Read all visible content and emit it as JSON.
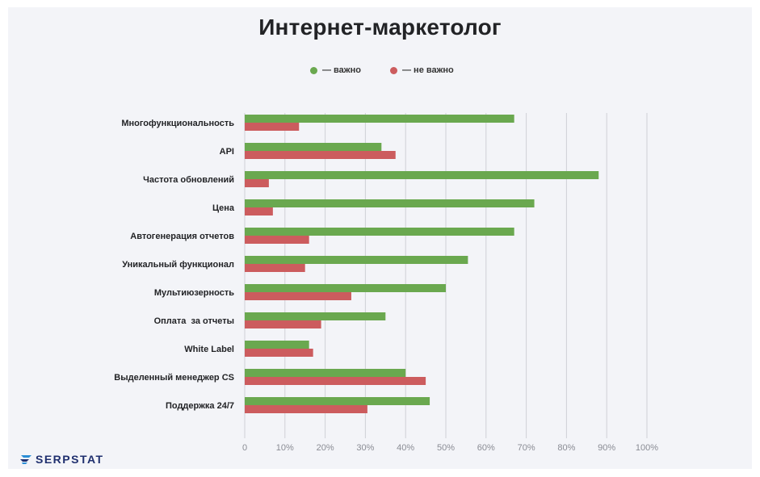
{
  "title": "Интернет-маркетолог",
  "legend": {
    "important_label": "— важно",
    "not_important_label": "— не важно"
  },
  "colors": {
    "important": "#6aa84f",
    "not_important": "#cc5c5e",
    "grid": "#cfd0d6",
    "background": "#f3f4f8"
  },
  "logo": {
    "text": "SERPSTAT"
  },
  "chart_data": {
    "type": "bar",
    "orientation": "horizontal",
    "categories": [
      "Многофункциональность",
      "API",
      "Частота обновлений",
      "Цена",
      "Автогенерация отчетов",
      "Уникальный функционал",
      "Мультиюзерность",
      "Оплата  за отчеты",
      "White Label",
      "Выделенный менеджер CS",
      "Поддержка 24/7"
    ],
    "series": [
      {
        "name": "важно",
        "values": [
          67,
          34,
          88,
          72,
          67,
          55.5,
          50,
          35,
          16,
          40,
          46
        ]
      },
      {
        "name": "не важно",
        "values": [
          13.5,
          37.5,
          6,
          7,
          16,
          15,
          26.5,
          19,
          17,
          45,
          30.5
        ]
      }
    ],
    "xlim": [
      0,
      100
    ],
    "xticks": [
      "0",
      "10%",
      "20%",
      "30%",
      "40%",
      "50%",
      "60%",
      "70%",
      "80%",
      "90%",
      "100%"
    ],
    "grid": true,
    "legend_position": "top-center"
  }
}
